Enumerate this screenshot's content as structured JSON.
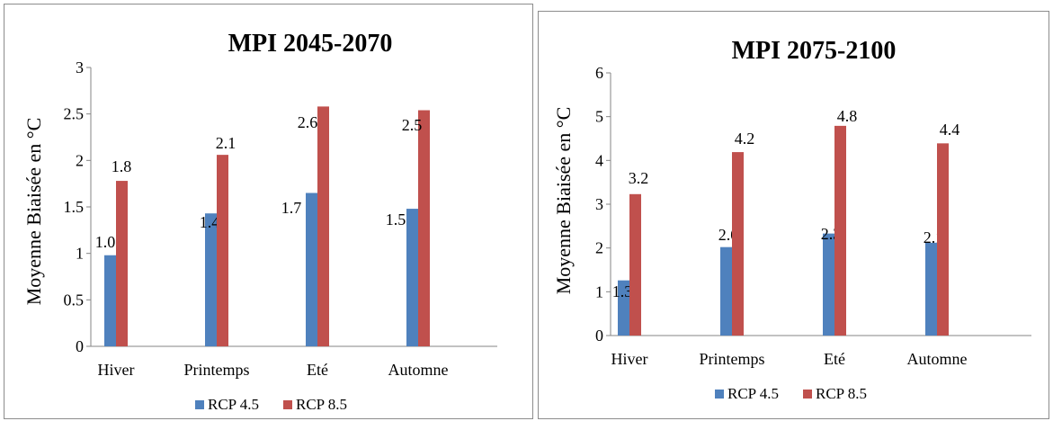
{
  "colors": {
    "rcp45": "#4f81bd",
    "rcp85": "#c0504d",
    "axis": "#868686"
  },
  "chart_data": [
    {
      "type": "bar",
      "title": "MPI 2045-2070",
      "ylabel": "Moyenne  Biaisée en °C",
      "xlabel": "",
      "categories": [
        "Hiver",
        "Printemps",
        "Eté",
        "Automne"
      ],
      "ylim": [
        0,
        3
      ],
      "yticks": [
        "0",
        "0.5",
        "1",
        "1.5",
        "2",
        "2.5",
        "3"
      ],
      "legend": "bottom",
      "grid": false,
      "series": [
        {
          "name": "RCP 4.5",
          "values": [
            0.98,
            1.43,
            1.65,
            1.48
          ],
          "labels": [
            "1.0",
            "1.4",
            "1.7",
            "1.5"
          ]
        },
        {
          "name": "RCP 8.5",
          "values": [
            1.78,
            2.06,
            2.58,
            2.54
          ],
          "labels": [
            "1.8",
            "2.1",
            "2.6",
            "2.5"
          ]
        }
      ]
    },
    {
      "type": "bar",
      "title": "MPI 2075-2100",
      "ylabel": "Moyenne  Biaisée en °C",
      "xlabel": "",
      "categories": [
        "Hiver",
        "Printemps",
        "Eté",
        "Automne"
      ],
      "ylim": [
        0,
        6
      ],
      "yticks": [
        "0",
        "1",
        "2",
        "3",
        "4",
        "5",
        "6"
      ],
      "legend": "bottom",
      "grid": false,
      "series": [
        {
          "name": "RCP 4.5",
          "values": [
            1.26,
            2.02,
            2.33,
            2.12
          ],
          "labels": [
            "1.3",
            "2.0",
            "2.3",
            "2.1"
          ]
        },
        {
          "name": "RCP 8.5",
          "values": [
            3.23,
            4.19,
            4.79,
            4.39
          ],
          "labels": [
            "3.2",
            "4.2",
            "4.8",
            "4.4"
          ]
        }
      ]
    }
  ]
}
